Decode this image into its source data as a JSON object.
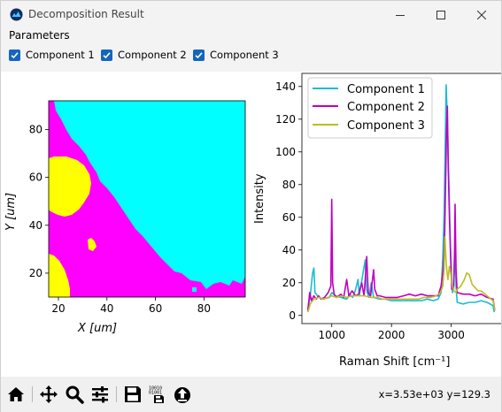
{
  "window": {
    "title": "Decomposition Result"
  },
  "parameters": {
    "label": "Parameters",
    "components": [
      {
        "label": "Component 1",
        "checked": true
      },
      {
        "label": "Component 2",
        "checked": true
      },
      {
        "label": "Component 3",
        "checked": true
      }
    ]
  },
  "colors": {
    "cyan": "#00ffff",
    "magenta": "#ff00ff",
    "yellow": "#ffff00",
    "line_c1": "#17becf",
    "line_c2": "#c000c0",
    "line_c3": "#bcbd22",
    "checkbox": "#1565c0"
  },
  "chart_data": [
    {
      "type": "heatmap",
      "xlabel": "X [um]",
      "ylabel": "Y [um]",
      "xlim": [
        16,
        97
      ],
      "ylim": [
        10,
        92
      ],
      "x_ticks": [
        20,
        40,
        60,
        80
      ],
      "y_ticks": [
        20,
        40,
        60,
        80
      ],
      "regions": [
        {
          "name": "Component 1",
          "color": "cyan"
        },
        {
          "name": "Component 2",
          "color": "magenta"
        },
        {
          "name": "Component 3",
          "color": "yellow"
        }
      ]
    },
    {
      "type": "line",
      "xlabel": "Raman Shift [cm⁻¹]",
      "ylabel": "Intensity",
      "xlim": [
        500,
        3850
      ],
      "ylim": [
        -5,
        148
      ],
      "x_ticks": [
        1000,
        2000,
        3000
      ],
      "y_ticks": [
        0,
        20,
        40,
        60,
        80,
        100,
        120,
        140
      ],
      "legend": "top-left",
      "series": [
        {
          "name": "Component 1",
          "color": "line_c1",
          "points": [
            [
              600,
              3
            ],
            [
              640,
              12
            ],
            [
              680,
              26
            ],
            [
              700,
              29
            ],
            [
              720,
              14
            ],
            [
              780,
              11
            ],
            [
              860,
              10
            ],
            [
              960,
              11
            ],
            [
              1000,
              14
            ],
            [
              1060,
              12
            ],
            [
              1150,
              11
            ],
            [
              1250,
              10
            ],
            [
              1300,
              13
            ],
            [
              1350,
              11
            ],
            [
              1400,
              16
            ],
            [
              1440,
              22
            ],
            [
              1460,
              12
            ],
            [
              1560,
              34
            ],
            [
              1580,
              16
            ],
            [
              1620,
              11
            ],
            [
              1660,
              20
            ],
            [
              1700,
              11
            ],
            [
              1800,
              10
            ],
            [
              1900,
              10
            ],
            [
              2000,
              9
            ],
            [
              2100,
              9
            ],
            [
              2200,
              9
            ],
            [
              2300,
              9
            ],
            [
              2400,
              9
            ],
            [
              2500,
              9
            ],
            [
              2600,
              10
            ],
            [
              2700,
              9
            ],
            [
              2780,
              10
            ],
            [
              2830,
              14
            ],
            [
              2860,
              36
            ],
            [
              2880,
              62
            ],
            [
              2900,
              105
            ],
            [
              2915,
              141
            ],
            [
              2935,
              120
            ],
            [
              2950,
              95
            ],
            [
              2965,
              75
            ],
            [
              2985,
              45
            ],
            [
              3000,
              28
            ],
            [
              3020,
              14
            ],
            [
              3040,
              16
            ],
            [
              3060,
              40
            ],
            [
              3080,
              18
            ],
            [
              3100,
              8
            ],
            [
              3200,
              7
            ],
            [
              3300,
              8
            ],
            [
              3400,
              8
            ],
            [
              3500,
              9
            ],
            [
              3600,
              8
            ],
            [
              3700,
              6
            ],
            [
              3720,
              2
            ]
          ]
        },
        {
          "name": "Component 2",
          "color": "line_c2",
          "points": [
            [
              600,
              3
            ],
            [
              630,
              14
            ],
            [
              660,
              9
            ],
            [
              700,
              12
            ],
            [
              740,
              10
            ],
            [
              780,
              12
            ],
            [
              820,
              10
            ],
            [
              880,
              11
            ],
            [
              940,
              14
            ],
            [
              985,
              18
            ],
            [
              1000,
              71
            ],
            [
              1015,
              20
            ],
            [
              1040,
              13
            ],
            [
              1080,
              11
            ],
            [
              1150,
              13
            ],
            [
              1200,
              11
            ],
            [
              1250,
              22
            ],
            [
              1285,
              12
            ],
            [
              1340,
              15
            ],
            [
              1400,
              12
            ],
            [
              1450,
              13
            ],
            [
              1500,
              20
            ],
            [
              1540,
              12
            ],
            [
              1560,
              22
            ],
            [
              1585,
              36
            ],
            [
              1610,
              14
            ],
            [
              1650,
              12
            ],
            [
              1700,
              28
            ],
            [
              1720,
              16
            ],
            [
              1760,
              12
            ],
            [
              1800,
              12
            ],
            [
              1900,
              11
            ],
            [
              2000,
              11
            ],
            [
              2100,
              11
            ],
            [
              2200,
              12
            ],
            [
              2300,
              13
            ],
            [
              2400,
              12
            ],
            [
              2500,
              13
            ],
            [
              2600,
              12
            ],
            [
              2700,
              12
            ],
            [
              2780,
              12
            ],
            [
              2830,
              18
            ],
            [
              2870,
              30
            ],
            [
              2890,
              48
            ],
            [
              2905,
              78
            ],
            [
              2920,
              112
            ],
            [
              2935,
              128
            ],
            [
              2950,
              90
            ],
            [
              2970,
              60
            ],
            [
              2990,
              35
            ],
            [
              3010,
              16
            ],
            [
              3040,
              18
            ],
            [
              3055,
              38
            ],
            [
              3065,
              68
            ],
            [
              3080,
              28
            ],
            [
              3100,
              14
            ],
            [
              3200,
              13
            ],
            [
              3300,
              13
            ],
            [
              3400,
              12
            ],
            [
              3500,
              13
            ],
            [
              3600,
              11
            ],
            [
              3700,
              10
            ],
            [
              3730,
              3
            ]
          ]
        },
        {
          "name": "Component 3",
          "color": "line_c3",
          "points": [
            [
              600,
              2
            ],
            [
              640,
              7
            ],
            [
              700,
              10
            ],
            [
              780,
              11
            ],
            [
              860,
              10
            ],
            [
              940,
              11
            ],
            [
              1000,
              12
            ],
            [
              1080,
              11
            ],
            [
              1150,
              12
            ],
            [
              1250,
              11
            ],
            [
              1350,
              12
            ],
            [
              1450,
              12
            ],
            [
              1550,
              12
            ],
            [
              1650,
              11
            ],
            [
              1750,
              11
            ],
            [
              1850,
              10
            ],
            [
              1950,
              10
            ],
            [
              2050,
              10
            ],
            [
              2150,
              10
            ],
            [
              2250,
              10
            ],
            [
              2350,
              10
            ],
            [
              2450,
              10
            ],
            [
              2550,
              11
            ],
            [
              2650,
              11
            ],
            [
              2750,
              12
            ],
            [
              2820,
              14
            ],
            [
              2860,
              18
            ],
            [
              2880,
              28
            ],
            [
              2895,
              48
            ],
            [
              2910,
              36
            ],
            [
              2925,
              28
            ],
            [
              2945,
              22
            ],
            [
              2970,
              30
            ],
            [
              2990,
              26
            ],
            [
              3010,
              20
            ],
            [
              3040,
              15
            ],
            [
              3080,
              14
            ],
            [
              3100,
              16
            ],
            [
              3160,
              18
            ],
            [
              3220,
              22
            ],
            [
              3260,
              26
            ],
            [
              3300,
              25
            ],
            [
              3350,
              19
            ],
            [
              3400,
              17
            ],
            [
              3450,
              15
            ],
            [
              3500,
              15
            ],
            [
              3600,
              12
            ],
            [
              3700,
              9
            ],
            [
              3730,
              3
            ]
          ]
        }
      ]
    }
  ],
  "toolbar": {
    "coords": "x=3.53e+03 y=129.3",
    "buttons": [
      "home-icon",
      "pan-icon",
      "zoom-icon",
      "configure-icon",
      "save-icon",
      "save-data-icon",
      "export-icon"
    ]
  }
}
